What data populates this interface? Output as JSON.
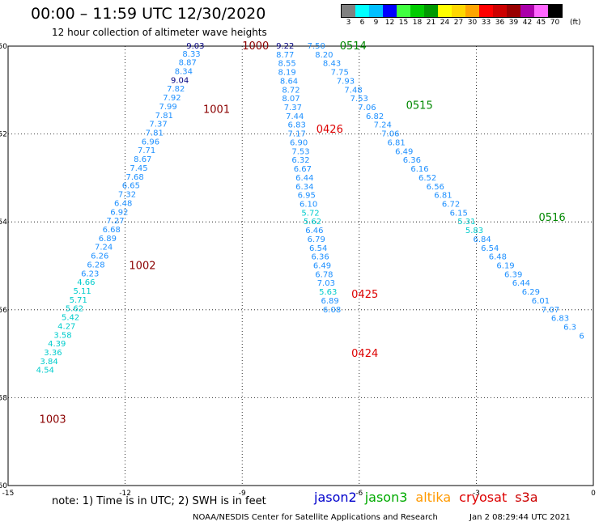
{
  "header": {
    "title": "00:00 – 11:59 UTC 12/30/2020",
    "subtitle": "12 hour collection of altimeter wave heights"
  },
  "legend": {
    "unit": "(ft)",
    "bins": [
      {
        "label": "3",
        "color": "#808080"
      },
      {
        "label": "6",
        "color": "#00ffff"
      },
      {
        "label": "9",
        "color": "#00bfff"
      },
      {
        "label": "12",
        "color": "#0000ff"
      },
      {
        "label": "15",
        "color": "#40ff40"
      },
      {
        "label": "18",
        "color": "#00cc00"
      },
      {
        "label": "21",
        "color": "#009900"
      },
      {
        "label": "24",
        "color": "#ffff00"
      },
      {
        "label": "27",
        "color": "#ffd700"
      },
      {
        "label": "30",
        "color": "#ffa500"
      },
      {
        "label": "33",
        "color": "#ff0000"
      },
      {
        "label": "36",
        "color": "#cc0000"
      },
      {
        "label": "39",
        "color": "#990000"
      },
      {
        "label": "42",
        "color": "#aa00aa"
      },
      {
        "label": "45",
        "color": "#ff66ff"
      },
      {
        "label": "70",
        "color": "#000000"
      }
    ]
  },
  "footer": {
    "note": "note:  1) Time is in UTC;  2) SWH is in feet",
    "credit": "NOAA/NESDIS Center for Satellite Applications and Research",
    "timestamp": "Jan  2 08:29:44 UTC 2021",
    "missions": [
      {
        "name": "jason2",
        "color": "#0000cc"
      },
      {
        "name": "jason3",
        "color": "#00aa00"
      },
      {
        "name": "altika",
        "color": "#ff9900"
      },
      {
        "name": "cryosat",
        "color": "#dd0000"
      },
      {
        "name": "s3a",
        "color": "#cc0000"
      }
    ]
  },
  "chart_data": {
    "type": "scatter",
    "xlim": [
      -15,
      0
    ],
    "ylim": [
      -60,
      -50
    ],
    "x_ticks": [
      -15,
      -12,
      -9,
      -6,
      -3,
      0
    ],
    "y_ticks": [
      -50,
      -52,
      -54,
      -56,
      -58,
      -60
    ],
    "grid": true,
    "track_labels": [
      {
        "text": "1000",
        "x": -9.0,
        "y": -50.0,
        "color": "#8b0000"
      },
      {
        "text": "1001",
        "x": -10.0,
        "y": -51.45,
        "color": "#8b0000"
      },
      {
        "text": "1002",
        "x": -11.9,
        "y": -55.0,
        "color": "#8b0000"
      },
      {
        "text": "1003",
        "x": -14.2,
        "y": -58.5,
        "color": "#8b0000"
      },
      {
        "text": "0514",
        "x": -6.5,
        "y": -50.0,
        "color": "#008800"
      },
      {
        "text": "0515",
        "x": -4.8,
        "y": -51.35,
        "color": "#008800"
      },
      {
        "text": "0516",
        "x": -1.4,
        "y": -53.9,
        "color": "#008800"
      },
      {
        "text": "0426",
        "x": -7.1,
        "y": -51.9,
        "color": "#dd0000"
      },
      {
        "text": "0425",
        "x": -6.2,
        "y": -55.65,
        "color": "#dd0000"
      },
      {
        "text": "0424",
        "x": -6.2,
        "y": -57.0,
        "color": "#dd0000"
      }
    ],
    "series": [
      {
        "color": "#1e90ff",
        "points": [
          {
            "x": -10.2,
            "y": -50.0,
            "v": "9.03"
          },
          {
            "x": -10.3,
            "y": -50.18,
            "v": "8.33"
          },
          {
            "x": -10.4,
            "y": -50.38,
            "v": "8.87"
          },
          {
            "x": -10.5,
            "y": -50.58,
            "v": "8.34"
          },
          {
            "x": -10.6,
            "y": -50.78,
            "v": "9.04"
          },
          {
            "x": -10.7,
            "y": -50.98,
            "v": "7.82"
          },
          {
            "x": -10.8,
            "y": -51.18,
            "v": "7.92"
          },
          {
            "x": -10.9,
            "y": -51.38,
            "v": "7.99"
          },
          {
            "x": -11.0,
            "y": -51.58,
            "v": "7.81"
          },
          {
            "x": -11.15,
            "y": -51.78,
            "v": "7.37"
          },
          {
            "x": -11.25,
            "y": -51.98,
            "v": "7.81"
          },
          {
            "x": -11.35,
            "y": -52.18,
            "v": "6.96"
          },
          {
            "x": -11.45,
            "y": -52.38,
            "v": "7.71"
          },
          {
            "x": -11.55,
            "y": -52.58,
            "v": "8.67"
          },
          {
            "x": -11.65,
            "y": -52.78,
            "v": "7.45"
          },
          {
            "x": -11.75,
            "y": -52.98,
            "v": "7.68"
          },
          {
            "x": -11.85,
            "y": -53.18,
            "v": "6.65"
          },
          {
            "x": -11.95,
            "y": -53.38,
            "v": "7.32"
          },
          {
            "x": -12.05,
            "y": -53.58,
            "v": "6.48"
          },
          {
            "x": -12.15,
            "y": -53.78,
            "v": "6.92"
          },
          {
            "x": -12.25,
            "y": -53.98,
            "v": "7.27"
          },
          {
            "x": -12.35,
            "y": -54.18,
            "v": "6.68"
          },
          {
            "x": -12.45,
            "y": -54.38,
            "v": "6.89"
          },
          {
            "x": -12.55,
            "y": -54.58,
            "v": "7.24"
          },
          {
            "x": -12.65,
            "y": -54.78,
            "v": "6.26"
          },
          {
            "x": -12.75,
            "y": -54.98,
            "v": "6.28"
          },
          {
            "x": -12.9,
            "y": -55.18,
            "v": "6.23"
          },
          {
            "x": -13.0,
            "y": -55.38,
            "v": "4.66"
          },
          {
            "x": -13.1,
            "y": -55.58,
            "v": "5.11"
          },
          {
            "x": -13.2,
            "y": -55.78,
            "v": "5.71"
          },
          {
            "x": -13.3,
            "y": -55.98,
            "v": "5.62"
          },
          {
            "x": -13.4,
            "y": -56.18,
            "v": "5.42"
          },
          {
            "x": -13.5,
            "y": -56.38,
            "v": "4.27"
          },
          {
            "x": -13.6,
            "y": -56.58,
            "v": "3.58"
          },
          {
            "x": -13.75,
            "y": -56.78,
            "v": "4.39"
          },
          {
            "x": -13.85,
            "y": -56.98,
            "v": "3.36"
          },
          {
            "x": -13.95,
            "y": -57.18,
            "v": "3.84"
          },
          {
            "x": -14.05,
            "y": -57.38,
            "v": "4.54"
          }
        ]
      },
      {
        "color": "#1e90ff",
        "points": [
          {
            "x": -7.9,
            "y": -50.0,
            "v": "9.22"
          },
          {
            "x": -7.9,
            "y": -50.2,
            "v": "8.77"
          },
          {
            "x": -7.85,
            "y": -50.4,
            "v": "8.55"
          },
          {
            "x": -7.85,
            "y": -50.6,
            "v": "8.19"
          },
          {
            "x": -7.8,
            "y": -50.8,
            "v": "8.64"
          },
          {
            "x": -7.75,
            "y": -51.0,
            "v": "8.72"
          },
          {
            "x": -7.75,
            "y": -51.2,
            "v": "8.07"
          },
          {
            "x": -7.7,
            "y": -51.4,
            "v": "7.37"
          },
          {
            "x": -7.65,
            "y": -51.6,
            "v": "7.44"
          },
          {
            "x": -7.6,
            "y": -51.8,
            "v": "6.83"
          },
          {
            "x": -7.6,
            "y": -52.0,
            "v": "7.17"
          },
          {
            "x": -7.55,
            "y": -52.2,
            "v": "6.90"
          },
          {
            "x": -7.5,
            "y": -52.4,
            "v": "7.53"
          },
          {
            "x": -7.5,
            "y": -52.6,
            "v": "6.32"
          },
          {
            "x": -7.45,
            "y": -52.8,
            "v": "6.67"
          },
          {
            "x": -7.4,
            "y": -53.0,
            "v": "6.44"
          },
          {
            "x": -7.4,
            "y": -53.2,
            "v": "6.34"
          },
          {
            "x": -7.35,
            "y": -53.4,
            "v": "6.95"
          },
          {
            "x": -7.3,
            "y": -53.6,
            "v": "6.10"
          },
          {
            "x": -7.25,
            "y": -53.8,
            "v": "5.72"
          },
          {
            "x": -7.2,
            "y": -54.0,
            "v": "5.62"
          },
          {
            "x": -7.15,
            "y": -54.2,
            "v": "6.46"
          },
          {
            "x": -7.1,
            "y": -54.4,
            "v": "6.79"
          },
          {
            "x": -7.05,
            "y": -54.6,
            "v": "6.54"
          },
          {
            "x": -7.0,
            "y": -54.8,
            "v": "6.36"
          },
          {
            "x": -6.95,
            "y": -55.0,
            "v": "6.49"
          },
          {
            "x": -6.9,
            "y": -55.2,
            "v": "6.78"
          },
          {
            "x": -6.85,
            "y": -55.4,
            "v": "7.03"
          },
          {
            "x": -6.8,
            "y": -55.6,
            "v": "5.63"
          },
          {
            "x": -6.75,
            "y": -55.8,
            "v": "6.89"
          },
          {
            "x": -6.7,
            "y": -56.0,
            "v": "6.08"
          }
        ]
      },
      {
        "color": "#1e90ff",
        "points": [
          {
            "x": -7.1,
            "y": -50.0,
            "v": "7.50"
          },
          {
            "x": -6.9,
            "y": -50.2,
            "v": "8.20"
          },
          {
            "x": -6.7,
            "y": -50.4,
            "v": "8.43"
          },
          {
            "x": -6.5,
            "y": -50.6,
            "v": "7.75"
          },
          {
            "x": -6.35,
            "y": -50.8,
            "v": "7.93"
          },
          {
            "x": -6.15,
            "y": -51.0,
            "v": "7.48"
          },
          {
            "x": -6.0,
            "y": -51.2,
            "v": "7.53"
          },
          {
            "x": -5.8,
            "y": -51.4,
            "v": "7.06"
          },
          {
            "x": -5.6,
            "y": -51.6,
            "v": "6.82"
          },
          {
            "x": -5.4,
            "y": -51.8,
            "v": "7.24"
          },
          {
            "x": -5.2,
            "y": -52.0,
            "v": "7.06"
          },
          {
            "x": -5.05,
            "y": -52.2,
            "v": "6.81"
          },
          {
            "x": -4.85,
            "y": -52.4,
            "v": "6.49"
          },
          {
            "x": -4.65,
            "y": -52.6,
            "v": "6.36"
          },
          {
            "x": -4.45,
            "y": -52.8,
            "v": "6.16"
          },
          {
            "x": -4.25,
            "y": -53.0,
            "v": "6.52"
          },
          {
            "x": -4.05,
            "y": -53.2,
            "v": "6.56"
          },
          {
            "x": -3.85,
            "y": -53.4,
            "v": "6.81"
          },
          {
            "x": -3.65,
            "y": -53.6,
            "v": "6.72"
          },
          {
            "x": -3.45,
            "y": -53.8,
            "v": "6.15"
          },
          {
            "x": -3.25,
            "y": -54.0,
            "v": "5.31"
          },
          {
            "x": -3.05,
            "y": -54.2,
            "v": "5.83"
          },
          {
            "x": -2.85,
            "y": -54.4,
            "v": "6.84"
          },
          {
            "x": -2.65,
            "y": -54.6,
            "v": "6.54"
          },
          {
            "x": -2.45,
            "y": -54.8,
            "v": "6.48"
          },
          {
            "x": -2.25,
            "y": -55.0,
            "v": "6.19"
          },
          {
            "x": -2.05,
            "y": -55.2,
            "v": "6.39"
          },
          {
            "x": -1.85,
            "y": -55.4,
            "v": "6.44"
          },
          {
            "x": -1.6,
            "y": -55.6,
            "v": "6.29"
          },
          {
            "x": -1.35,
            "y": -55.8,
            "v": "6.01"
          },
          {
            "x": -1.1,
            "y": -56.0,
            "v": "7.07"
          },
          {
            "x": -0.85,
            "y": -56.2,
            "v": "6.83"
          },
          {
            "x": -0.6,
            "y": -56.4,
            "v": "6.3"
          },
          {
            "x": -0.3,
            "y": -56.6,
            "v": "6"
          }
        ]
      }
    ]
  }
}
